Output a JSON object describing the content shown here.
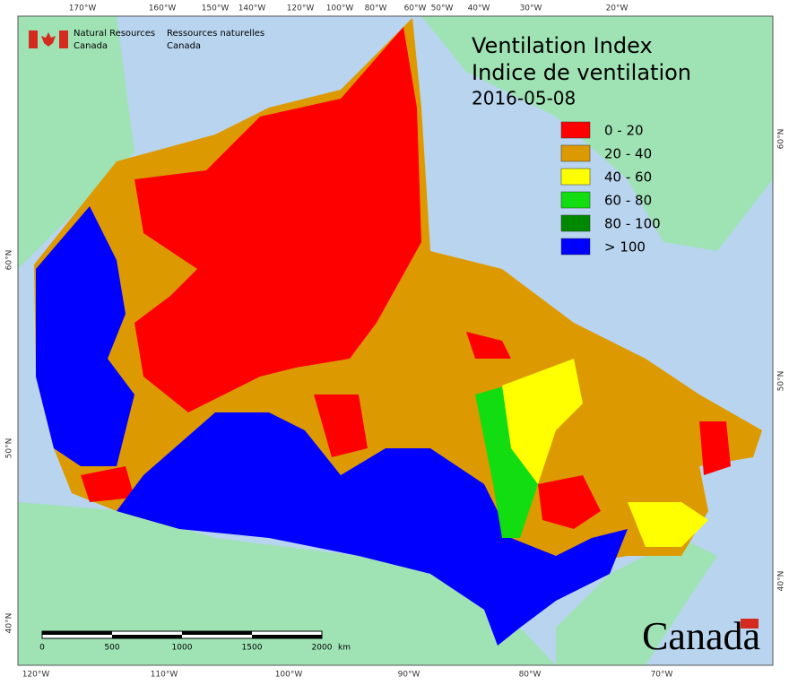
{
  "agency": [
    "Natural Resources",
    "Canada",
    "Ressources naturelles",
    "Canada"
  ],
  "title": [
    "Ventilation Index",
    "Indice de ventilation"
  ],
  "date": "2016-05-08",
  "legend": [
    {
      "label": "0 - 20",
      "color": "#ff0000"
    },
    {
      "label": "20 - 40",
      "color": "#dd9a00"
    },
    {
      "label": "40 - 60",
      "color": "#ffff00"
    },
    {
      "label": "60 - 80",
      "color": "#11dd11"
    },
    {
      "label": "80 - 100",
      "color": "#008800"
    },
    {
      "label": "> 100",
      "color": "#0000ff"
    }
  ],
  "graticule": {
    "top": [
      "170°W",
      "160°W",
      "150°W",
      "140°W",
      "120°W",
      "100°W",
      "80°W",
      "60°W",
      "50°W",
      "40°W",
      "30°W",
      "20°W"
    ],
    "bottom": [
      "120°W",
      "110°W",
      "100°W",
      "90°W",
      "80°W",
      "70°W"
    ],
    "left": [
      "60°N",
      "50°N",
      "40°N"
    ],
    "right": [
      "60°N",
      "50°N",
      "40°N"
    ]
  },
  "scale_bar": {
    "ticks": [
      "0",
      "500",
      "1000",
      "1500",
      "2000"
    ],
    "unit": "km"
  },
  "wordmark": "Canada"
}
